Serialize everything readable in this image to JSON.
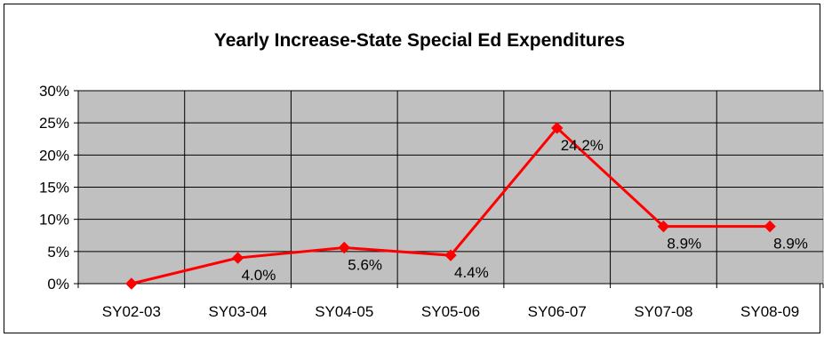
{
  "chart_data": {
    "type": "line",
    "title": "Yearly Increase-State Special Ed Expenditures",
    "xlabel": "",
    "ylabel": "",
    "categories": [
      "SY02-03",
      "SY03-04",
      "SY04-05",
      "SY05-06",
      "SY06-07",
      "SY07-08",
      "SY08-09"
    ],
    "series": [
      {
        "values": [
          0.0,
          4.0,
          5.6,
          4.4,
          24.2,
          8.9,
          8.9
        ],
        "data_labels": [
          "",
          "4.0%",
          "5.6%",
          "4.4%",
          "24.2%",
          "8.9%",
          "8.9%"
        ],
        "color": "#ff0000",
        "marker": "diamond"
      }
    ],
    "ylim": [
      0,
      30
    ],
    "yticks": [
      0,
      5,
      10,
      15,
      20,
      25,
      30
    ],
    "ytick_labels": [
      "0%",
      "5%",
      "10%",
      "15%",
      "20%",
      "25%",
      "30%"
    ],
    "grid": true,
    "legend": "none",
    "plot_background": "#c0c0c0"
  }
}
